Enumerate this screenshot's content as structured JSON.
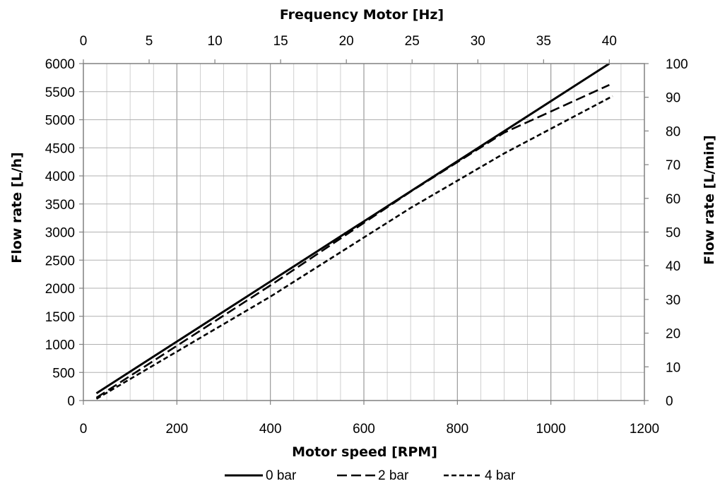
{
  "chart_data": {
    "type": "line",
    "title": "",
    "xlabel": "Motor speed [RPM]",
    "ylabel": "Flow rate [L/h]",
    "x2label": "Frequency Motor [Hz]",
    "y2label": "Flow rate [L/min]",
    "xlim": [
      0,
      1200
    ],
    "ylim": [
      0,
      6000
    ],
    "x2lim": [
      0,
      40
    ],
    "y2lim": [
      0,
      100
    ],
    "xticks": [
      "0",
      "200",
      "400",
      "600",
      "800",
      "1000",
      "1200"
    ],
    "yticks": [
      "0",
      "500",
      "1000",
      "1500",
      "2000",
      "2500",
      "3000",
      "3500",
      "4000",
      "4500",
      "5000",
      "5500",
      "6000"
    ],
    "x2ticks": [
      "0",
      "5",
      "10",
      "15",
      "20",
      "25",
      "30",
      "35",
      "40"
    ],
    "y2ticks": [
      "0",
      "10",
      "20",
      "30",
      "40",
      "50",
      "60",
      "70",
      "80",
      "90",
      "100"
    ],
    "grid": true,
    "legend_position": "bottom",
    "series": [
      {
        "name": "0 bar",
        "style": "solid",
        "color": "#000000",
        "x": [
          28,
          1125
        ],
        "y": [
          130,
          6000
        ]
      },
      {
        "name": "2 bar",
        "style": "dashed",
        "color": "#000000",
        "x": [
          28,
          400,
          700,
          900,
          1125
        ],
        "y": [
          50,
          2050,
          3720,
          4770,
          5620
        ]
      },
      {
        "name": "4 bar",
        "style": "dashed-fine",
        "color": "#000000",
        "x": [
          28,
          400,
          700,
          900,
          1132
        ],
        "y": [
          30,
          1850,
          3430,
          4400,
          5420
        ]
      }
    ]
  }
}
